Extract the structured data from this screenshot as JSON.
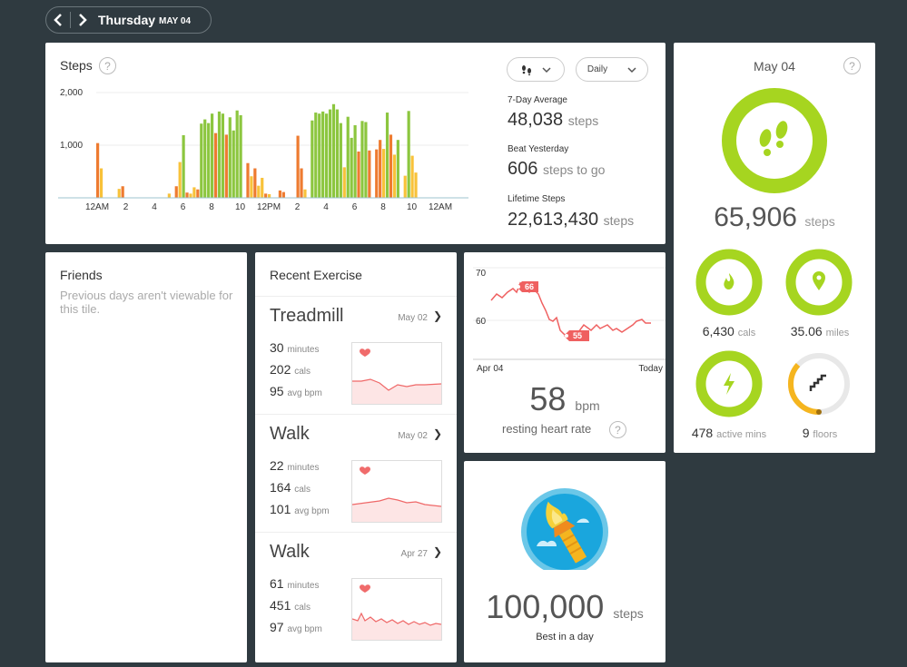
{
  "nav": {
    "day": "Thursday",
    "date": "MAY 04"
  },
  "steps_tile": {
    "title": "Steps",
    "view_select": "Daily",
    "stats": [
      {
        "label": "7-Day Average",
        "value": "48,038",
        "unit": "steps"
      },
      {
        "label": "Beat Yesterday",
        "value": "606",
        "unit": "steps to go"
      },
      {
        "label": "Lifetime Steps",
        "value": "22,613,430",
        "unit": "steps"
      }
    ]
  },
  "chart_data": {
    "type": "bar",
    "yticks": [
      "2,000",
      "1,000"
    ],
    "ylim": [
      0,
      2000
    ],
    "xticks": [
      "12AM",
      "2",
      "4",
      "6",
      "8",
      "10",
      "12PM",
      "2",
      "4",
      "6",
      "8",
      "10",
      "12AM"
    ],
    "bars": [
      {
        "x": 0.0,
        "value": 1040,
        "color": "orange"
      },
      {
        "x": 0.25,
        "value": 560,
        "color": "yellow"
      },
      {
        "x": 1.5,
        "value": 170,
        "color": "yellow"
      },
      {
        "x": 1.75,
        "value": 220,
        "color": "orange"
      },
      {
        "x": 5.0,
        "value": 80,
        "color": "yellow"
      },
      {
        "x": 5.5,
        "value": 220,
        "color": "orange"
      },
      {
        "x": 5.75,
        "value": 680,
        "color": "yellow"
      },
      {
        "x": 6.0,
        "value": 1190,
        "color": "green"
      },
      {
        "x": 6.25,
        "value": 100,
        "color": "orange"
      },
      {
        "x": 6.5,
        "value": 80,
        "color": "yellow"
      },
      {
        "x": 6.75,
        "value": 200,
        "color": "yellow"
      },
      {
        "x": 7.0,
        "value": 160,
        "color": "orange"
      },
      {
        "x": 7.25,
        "value": 1410,
        "color": "green"
      },
      {
        "x": 7.5,
        "value": 1490,
        "color": "green"
      },
      {
        "x": 7.75,
        "value": 1420,
        "color": "green"
      },
      {
        "x": 8.0,
        "value": 1600,
        "color": "green"
      },
      {
        "x": 8.25,
        "value": 1230,
        "color": "orange"
      },
      {
        "x": 8.5,
        "value": 1640,
        "color": "green"
      },
      {
        "x": 8.75,
        "value": 1600,
        "color": "green"
      },
      {
        "x": 9.0,
        "value": 1200,
        "color": "orange"
      },
      {
        "x": 9.25,
        "value": 1530,
        "color": "green"
      },
      {
        "x": 9.5,
        "value": 1280,
        "color": "green"
      },
      {
        "x": 9.75,
        "value": 1660,
        "color": "green"
      },
      {
        "x": 10.0,
        "value": 1570,
        "color": "green"
      },
      {
        "x": 10.5,
        "value": 660,
        "color": "orange"
      },
      {
        "x": 10.75,
        "value": 410,
        "color": "yellow"
      },
      {
        "x": 11.0,
        "value": 560,
        "color": "orange"
      },
      {
        "x": 11.25,
        "value": 230,
        "color": "yellow"
      },
      {
        "x": 11.5,
        "value": 380,
        "color": "yellow"
      },
      {
        "x": 11.75,
        "value": 80,
        "color": "orange"
      },
      {
        "x": 12.0,
        "value": 70,
        "color": "yellow"
      },
      {
        "x": 12.75,
        "value": 140,
        "color": "orange"
      },
      {
        "x": 13.0,
        "value": 110,
        "color": "orange"
      },
      {
        "x": 14.0,
        "value": 1180,
        "color": "orange"
      },
      {
        "x": 14.25,
        "value": 560,
        "color": "orange"
      },
      {
        "x": 14.5,
        "value": 160,
        "color": "yellow"
      },
      {
        "x": 15.0,
        "value": 1470,
        "color": "green"
      },
      {
        "x": 15.25,
        "value": 1620,
        "color": "green"
      },
      {
        "x": 15.5,
        "value": 1600,
        "color": "green"
      },
      {
        "x": 15.75,
        "value": 1640,
        "color": "green"
      },
      {
        "x": 16.0,
        "value": 1600,
        "color": "green"
      },
      {
        "x": 16.25,
        "value": 1680,
        "color": "green"
      },
      {
        "x": 16.5,
        "value": 1780,
        "color": "green"
      },
      {
        "x": 16.75,
        "value": 1680,
        "color": "green"
      },
      {
        "x": 17.0,
        "value": 1420,
        "color": "green"
      },
      {
        "x": 17.25,
        "value": 580,
        "color": "yellow"
      },
      {
        "x": 17.5,
        "value": 1540,
        "color": "green"
      },
      {
        "x": 17.75,
        "value": 1140,
        "color": "green"
      },
      {
        "x": 18.0,
        "value": 1380,
        "color": "green"
      },
      {
        "x": 18.25,
        "value": 880,
        "color": "orange"
      },
      {
        "x": 18.5,
        "value": 1460,
        "color": "green"
      },
      {
        "x": 18.75,
        "value": 1440,
        "color": "green"
      },
      {
        "x": 19.0,
        "value": 900,
        "color": "orange"
      },
      {
        "x": 19.5,
        "value": 920,
        "color": "orange"
      },
      {
        "x": 19.75,
        "value": 1100,
        "color": "orange"
      },
      {
        "x": 20.0,
        "value": 930,
        "color": "yellow"
      },
      {
        "x": 20.25,
        "value": 1620,
        "color": "green"
      },
      {
        "x": 20.5,
        "value": 1200,
        "color": "orange"
      },
      {
        "x": 20.75,
        "value": 820,
        "color": "yellow"
      },
      {
        "x": 21.0,
        "value": 1100,
        "color": "green"
      },
      {
        "x": 21.5,
        "value": 420,
        "color": "yellow"
      },
      {
        "x": 21.75,
        "value": 1650,
        "color": "green"
      },
      {
        "x": 22.0,
        "value": 800,
        "color": "yellow"
      },
      {
        "x": 22.25,
        "value": 480,
        "color": "yellow"
      }
    ]
  },
  "summary_tile": {
    "date": "May 04",
    "steps_value": "65,906",
    "steps_unit": "steps",
    "items": [
      {
        "value": "6,430",
        "unit": "cals",
        "icon": "flame-icon"
      },
      {
        "value": "35.06",
        "unit": "miles",
        "icon": "location-pin-icon"
      },
      {
        "value": "478",
        "unit": "active mins",
        "icon": "lightning-icon"
      },
      {
        "value": "9",
        "unit": "floors",
        "icon": "stairs-icon"
      }
    ],
    "colors": {
      "ring": "#a6d520",
      "ring_bg": "#e6e6e6",
      "floors": "#f5b51f"
    }
  },
  "friends_tile": {
    "title": "Friends",
    "message": "Previous days aren't viewable for this tile."
  },
  "exercise_tile": {
    "title": "Recent Exercise",
    "items": [
      {
        "name": "Treadmill",
        "date": "May 02",
        "minutes": "30",
        "cals": "202",
        "bpm": "95"
      },
      {
        "name": "Walk",
        "date": "May 02",
        "minutes": "22",
        "cals": "164",
        "bpm": "101"
      },
      {
        "name": "Walk",
        "date": "Apr 27",
        "minutes": "61",
        "cals": "451",
        "bpm": "97"
      }
    ],
    "labels": {
      "minutes": "minutes",
      "cals": "cals",
      "bpm": "avg bpm"
    }
  },
  "heart_tile": {
    "y_high": "70",
    "y_low": "60",
    "peak": "66",
    "low": "55",
    "x_start": "Apr 04",
    "x_end": "Today",
    "value": "58",
    "unit": "bpm",
    "label": "resting heart rate"
  },
  "badge_tile": {
    "value": "100,000",
    "unit": "steps",
    "label": "Best in a day"
  }
}
